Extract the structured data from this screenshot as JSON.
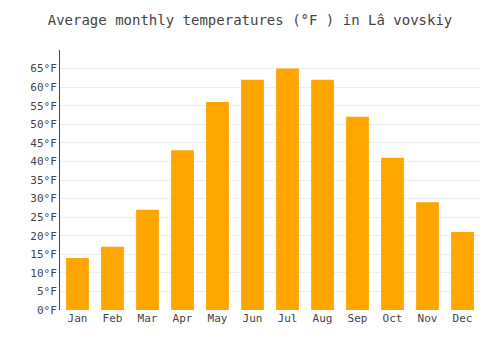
{
  "chart_data": {
    "type": "bar",
    "title": "Average monthly temperatures (°F ) in Lâ vovskiy",
    "categories": [
      "Jan",
      "Feb",
      "Mar",
      "Apr",
      "May",
      "Jun",
      "Jul",
      "Aug",
      "Sep",
      "Oct",
      "Nov",
      "Dec"
    ],
    "values": [
      14,
      17,
      27,
      43,
      56,
      62,
      65,
      62,
      52,
      41,
      29,
      21
    ],
    "color": "#FFA500",
    "ylim": [
      0,
      70
    ],
    "yticks": [
      {
        "value": 0,
        "label": "0°F"
      },
      {
        "value": 5,
        "label": "5°F"
      },
      {
        "value": 10,
        "label": "10°F"
      },
      {
        "value": 15,
        "label": "15°F"
      },
      {
        "value": 20,
        "label": "20°F"
      },
      {
        "value": 25,
        "label": "25°F"
      },
      {
        "value": 30,
        "label": "30°F"
      },
      {
        "value": 35,
        "label": "35°F"
      },
      {
        "value": 40,
        "label": "40°F"
      },
      {
        "value": 45,
        "label": "45°F"
      },
      {
        "value": 50,
        "label": "50°F"
      },
      {
        "value": 55,
        "label": "55°F"
      },
      {
        "value": 60,
        "label": "60°F"
      },
      {
        "value": 65,
        "label": "65°F"
      }
    ],
    "grid": true
  }
}
